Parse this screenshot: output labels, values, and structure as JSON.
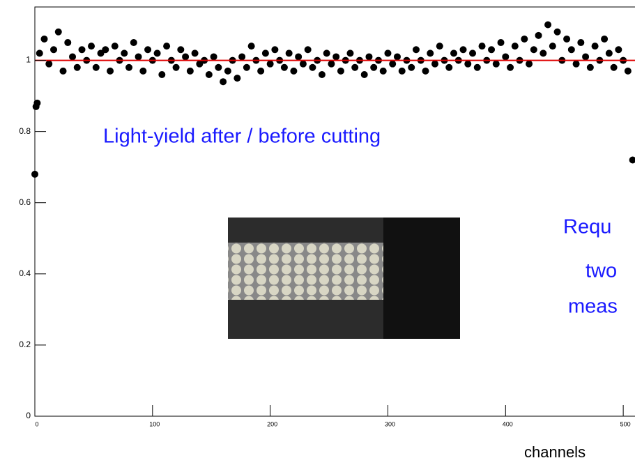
{
  "chart_data": {
    "type": "scatter",
    "title": "Light-yield after / before cutting",
    "annotations": [
      "Requ",
      "two",
      "meas"
    ],
    "x_label": "channels",
    "x": [
      0,
      1,
      2,
      4,
      8,
      12,
      16,
      20,
      24,
      28,
      32,
      36,
      40,
      44,
      48,
      52,
      56,
      60,
      64,
      68,
      72,
      76,
      80,
      84,
      88,
      92,
      96,
      100,
      104,
      108,
      112,
      116,
      120,
      124,
      128,
      132,
      136,
      140,
      144,
      148,
      152,
      156,
      160,
      164,
      168,
      172,
      176,
      180,
      184,
      188,
      192,
      196,
      200,
      204,
      208,
      212,
      216,
      220,
      224,
      228,
      232,
      236,
      240,
      244,
      248,
      252,
      256,
      260,
      264,
      268,
      272,
      276,
      280,
      284,
      288,
      292,
      296,
      300,
      304,
      308,
      312,
      316,
      320,
      324,
      328,
      332,
      336,
      340,
      344,
      348,
      352,
      356,
      360,
      364,
      368,
      372,
      376,
      380,
      384,
      388,
      392,
      396,
      400,
      404,
      408,
      412,
      416,
      420,
      424,
      428,
      432,
      436,
      440,
      444,
      448,
      452,
      456,
      460,
      464,
      468,
      472,
      476,
      480,
      484,
      488,
      492,
      496,
      500,
      504,
      508
    ],
    "values": [
      0.68,
      0.87,
      0.88,
      1.02,
      1.06,
      0.99,
      1.03,
      1.08,
      0.97,
      1.05,
      1.01,
      0.98,
      1.03,
      1.0,
      1.04,
      0.98,
      1.02,
      1.03,
      0.97,
      1.04,
      1.0,
      1.02,
      0.98,
      1.05,
      1.01,
      0.97,
      1.03,
      1.0,
      1.02,
      0.96,
      1.04,
      1.0,
      0.98,
      1.03,
      1.01,
      0.97,
      1.02,
      0.99,
      1.0,
      0.96,
      1.01,
      0.98,
      0.94,
      0.97,
      1.0,
      0.95,
      1.01,
      0.98,
      1.04,
      1.0,
      0.97,
      1.02,
      0.99,
      1.03,
      1.0,
      0.98,
      1.02,
      0.97,
      1.01,
      0.99,
      1.03,
      0.98,
      1.0,
      0.96,
      1.02,
      0.99,
      1.01,
      0.97,
      1.0,
      1.02,
      0.98,
      1.0,
      0.96,
      1.01,
      0.98,
      1.0,
      0.97,
      1.02,
      0.99,
      1.01,
      0.97,
      1.0,
      0.98,
      1.03,
      1.0,
      0.97,
      1.02,
      0.99,
      1.04,
      1.0,
      0.98,
      1.02,
      1.0,
      1.03,
      0.99,
      1.02,
      0.98,
      1.04,
      1.0,
      1.03,
      0.99,
      1.05,
      1.01,
      0.98,
      1.04,
      1.0,
      1.06,
      0.99,
      1.03,
      1.07,
      1.02,
      1.1,
      1.04,
      1.08,
      1.0,
      1.06,
      1.03,
      0.99,
      1.05,
      1.01,
      0.98,
      1.04,
      1.0,
      1.06,
      1.02,
      0.98,
      1.03,
      1.0,
      0.97,
      0.72
    ],
    "color": "#000000",
    "reference_line": 1,
    "reference_color": "#e00000",
    "xlim": [
      0,
      510
    ],
    "xticks": [
      0,
      100,
      200,
      300,
      400,
      500
    ],
    "ylim": [
      0,
      1.15
    ],
    "yticks": [
      0,
      0.2,
      0.4,
      0.6,
      0.8,
      1
    ]
  }
}
